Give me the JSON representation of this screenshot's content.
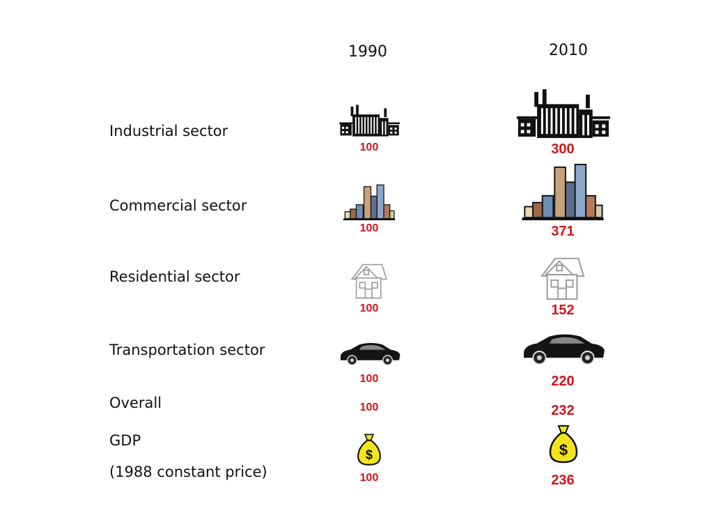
{
  "columns": {
    "year_a": "1990",
    "year_b": "2010"
  },
  "rows": [
    {
      "label": "Industrial sector",
      "icon": "factory-icon",
      "value_1990": "100",
      "value_2010": "300"
    },
    {
      "label": "Commercial sector",
      "icon": "city-buildings-icon",
      "value_1990": "100",
      "value_2010": "371"
    },
    {
      "label": "Residential sector",
      "icon": "house-icon",
      "value_1990": "100",
      "value_2010": "152"
    },
    {
      "label": "Transportation sector",
      "icon": "car-icon",
      "value_1990": "100",
      "value_2010": "220"
    },
    {
      "label": "Overall",
      "icon": null,
      "value_1990": "100",
      "value_2010": "232"
    },
    {
      "label_line1": "GDP",
      "label_line2": "(1988 constant price)",
      "icon": "money-bag-icon",
      "value_1990": "100",
      "value_2010": "236"
    }
  ],
  "colors": {
    "value_text": "#d2141c",
    "money_bag": "#f2e51c"
  }
}
